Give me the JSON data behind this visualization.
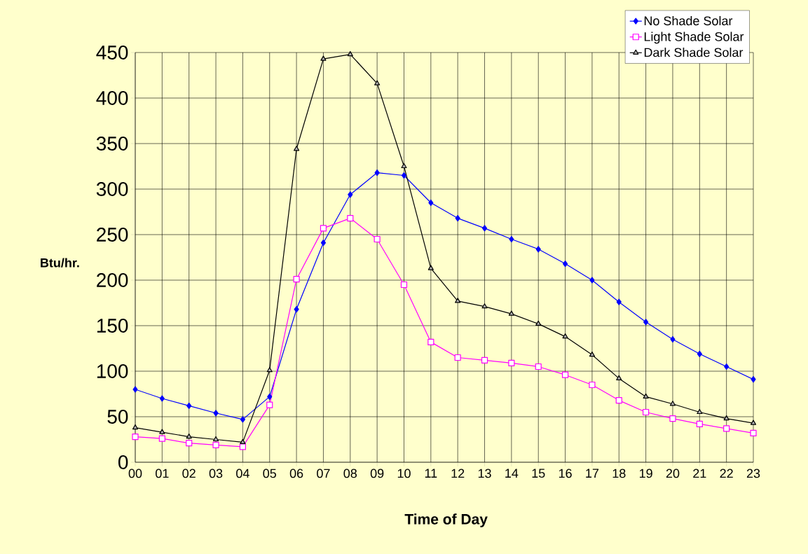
{
  "chart_data": {
    "type": "line",
    "xlabel": "Time of Day",
    "ylabel": "Btu/hr.",
    "categories": [
      "00",
      "01",
      "02",
      "03",
      "04",
      "05",
      "06",
      "07",
      "08",
      "09",
      "10",
      "11",
      "12",
      "13",
      "14",
      "15",
      "16",
      "17",
      "18",
      "19",
      "20",
      "21",
      "22",
      "23"
    ],
    "ylim": [
      0,
      450
    ],
    "yticks": [
      0,
      50,
      100,
      150,
      200,
      250,
      300,
      350,
      400,
      450
    ],
    "grid": true,
    "legend": "top right",
    "series": [
      {
        "name": "No Shade Solar",
        "color": "#0000ff",
        "marker": "diamond",
        "values": [
          80,
          70,
          62,
          54,
          47,
          72,
          168,
          241,
          294,
          318,
          315,
          285,
          268,
          257,
          245,
          234,
          218,
          200,
          176,
          154,
          135,
          119,
          105,
          91
        ]
      },
      {
        "name": "Light Shade Solar",
        "color": "#ff00ff",
        "marker": "square",
        "values": [
          28,
          26,
          21,
          19,
          17,
          63,
          201,
          257,
          268,
          245,
          195,
          132,
          115,
          112,
          109,
          105,
          96,
          85,
          68,
          55,
          48,
          42,
          37,
          32
        ]
      },
      {
        "name": "Dark Shade Solar",
        "color": "#000000",
        "marker": "triangle",
        "values": [
          38,
          33,
          28,
          25,
          22,
          101,
          344,
          443,
          448,
          416,
          325,
          213,
          177,
          171,
          163,
          152,
          138,
          118,
          92,
          72,
          64,
          55,
          48,
          43
        ]
      }
    ]
  }
}
